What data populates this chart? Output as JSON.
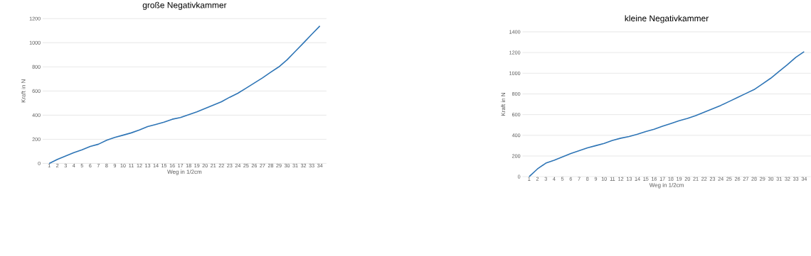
{
  "chart_data": [
    {
      "type": "line",
      "title": "große Negativkammer",
      "xlabel": "Weg in  1/2cm",
      "ylabel": "Kraft in N",
      "categories": [
        "1",
        "2",
        "3",
        "4",
        "5",
        "6",
        "7",
        "8",
        "9",
        "10",
        "11",
        "12",
        "13",
        "14",
        "15",
        "16",
        "17",
        "18",
        "19",
        "20",
        "21",
        "22",
        "23",
        "24",
        "25",
        "26",
        "27",
        "28",
        "29",
        "30",
        "31",
        "32",
        "33",
        "34"
      ],
      "series": [
        {
          "color": "#2e75b6",
          "values": [
            0,
            33,
            61,
            89,
            113,
            141,
            159,
            192,
            216,
            234,
            253,
            277,
            305,
            323,
            342,
            366,
            380,
            403,
            427,
            455,
            483,
            511,
            548,
            581,
            623,
            666,
            708,
            755,
            800,
            858,
            928,
            998,
            1069,
            1139
          ]
        }
      ],
      "ylim": [
        0,
        1200
      ],
      "yticks": [
        0,
        200,
        400,
        600,
        800,
        1000,
        1200
      ],
      "grid": "y"
    },
    {
      "type": "line",
      "title": "kleine Negativkammer",
      "xlabel": "Weg in  1/2cm",
      "ylabel": "Kraft in N",
      "categories": [
        "1",
        "2",
        "3",
        "4",
        "5",
        "6",
        "7",
        "8",
        "9",
        "10",
        "11",
        "12",
        "13",
        "14",
        "15",
        "16",
        "17",
        "18",
        "19",
        "20",
        "21",
        "22",
        "23",
        "24",
        "25",
        "26",
        "27",
        "28",
        "29",
        "30",
        "31",
        "32",
        "33",
        "34"
      ],
      "series": [
        {
          "color": "#2e75b6",
          "values": [
            0,
            75,
            131,
            159,
            191,
            224,
            251,
            279,
            300,
            322,
            350,
            372,
            388,
            410,
            437,
            459,
            487,
            514,
            541,
            563,
            590,
            623,
            656,
            689,
            727,
            765,
            804,
            842,
            897,
            952,
            1018,
            1083,
            1154,
            1208
          ]
        }
      ],
      "ylim": [
        0,
        1400
      ],
      "yticks": [
        0,
        200,
        400,
        600,
        800,
        1000,
        1200,
        1400
      ],
      "grid": "y"
    }
  ]
}
